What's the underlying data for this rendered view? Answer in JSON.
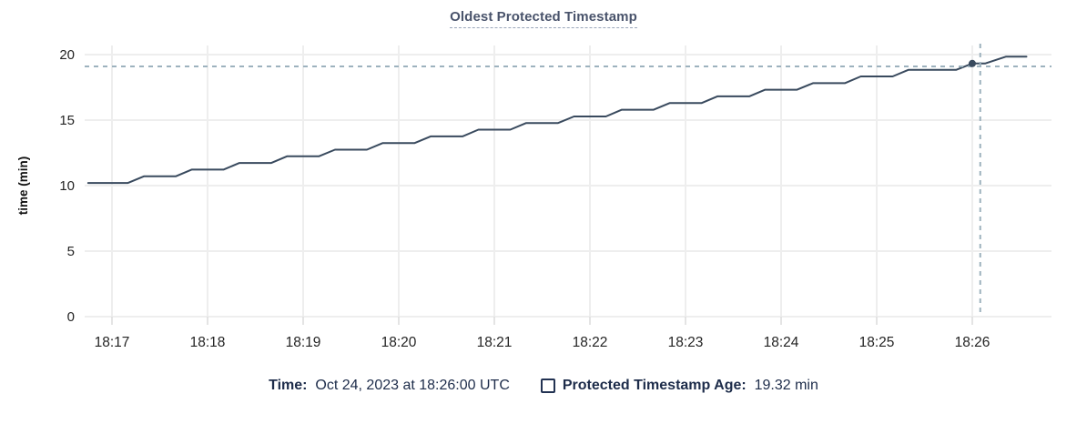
{
  "header": {
    "title": "Oldest Protected Timestamp"
  },
  "legend": {
    "time_label": "Time:",
    "time_value": "Oct 24, 2023 at 18:26:00 UTC",
    "series_label": "Protected Timestamp Age:",
    "series_value": "19.32 min",
    "swatch_icon": "series-checkbox-swatch"
  },
  "chart_data": {
    "type": "line",
    "title": "Oldest Protected Timestamp",
    "xlabel": "",
    "ylabel": "time (min)",
    "ylim": [
      0,
      20
    ],
    "y_ticks": [
      0,
      5,
      10,
      15,
      20
    ],
    "x_ticks": [
      "18:17",
      "18:18",
      "18:19",
      "18:20",
      "18:21",
      "18:22",
      "18:23",
      "18:24",
      "18:25",
      "18:26"
    ],
    "grid": true,
    "legend_position": "bottom",
    "series": [
      {
        "name": "Protected Timestamp Age",
        "unit": "min",
        "color": "#394a5e",
        "points": [
          [
            "18:16:45",
            10.2
          ],
          [
            "18:17:00",
            10.2
          ],
          [
            "18:17:10",
            10.2
          ],
          [
            "18:17:20",
            10.71
          ],
          [
            "18:17:40",
            10.71
          ],
          [
            "18:17:50",
            11.22
          ],
          [
            "18:18:10",
            11.22
          ],
          [
            "18:18:20",
            11.73
          ],
          [
            "18:18:40",
            11.73
          ],
          [
            "18:18:50",
            12.24
          ],
          [
            "18:19:10",
            12.24
          ],
          [
            "18:19:20",
            12.74
          ],
          [
            "18:19:40",
            12.74
          ],
          [
            "18:19:50",
            13.25
          ],
          [
            "18:20:10",
            13.25
          ],
          [
            "18:20:20",
            13.76
          ],
          [
            "18:20:40",
            13.76
          ],
          [
            "18:20:50",
            14.27
          ],
          [
            "18:21:10",
            14.27
          ],
          [
            "18:21:20",
            14.78
          ],
          [
            "18:21:40",
            14.78
          ],
          [
            "18:21:50",
            15.28
          ],
          [
            "18:22:10",
            15.28
          ],
          [
            "18:22:20",
            15.79
          ],
          [
            "18:22:40",
            15.79
          ],
          [
            "18:22:50",
            16.3
          ],
          [
            "18:23:10",
            16.3
          ],
          [
            "18:23:20",
            16.81
          ],
          [
            "18:23:40",
            16.81
          ],
          [
            "18:23:50",
            17.32
          ],
          [
            "18:24:10",
            17.32
          ],
          [
            "18:24:20",
            17.82
          ],
          [
            "18:24:40",
            17.82
          ],
          [
            "18:24:50",
            18.33
          ],
          [
            "18:25:10",
            18.33
          ],
          [
            "18:25:20",
            18.84
          ],
          [
            "18:25:50",
            18.84
          ],
          [
            "18:26:00",
            19.32
          ],
          [
            "18:26:08",
            19.32
          ],
          [
            "18:26:21",
            19.84
          ],
          [
            "18:26:34",
            19.84
          ]
        ]
      }
    ],
    "cursor": {
      "highlighted_point_time": "18:26:00",
      "highlighted_point_value": 19.32,
      "crosshair_time": "18:26:05",
      "crosshair_value": 19.1
    },
    "colors": {
      "grid": "#eeeeee",
      "tick_mark": "#d9d9d9",
      "tick_text": "#242424",
      "axis_title_text": "#111111",
      "crosshair": "#9db2be",
      "title_text": "#49536b",
      "legend_text": "#1d2c4a"
    }
  }
}
